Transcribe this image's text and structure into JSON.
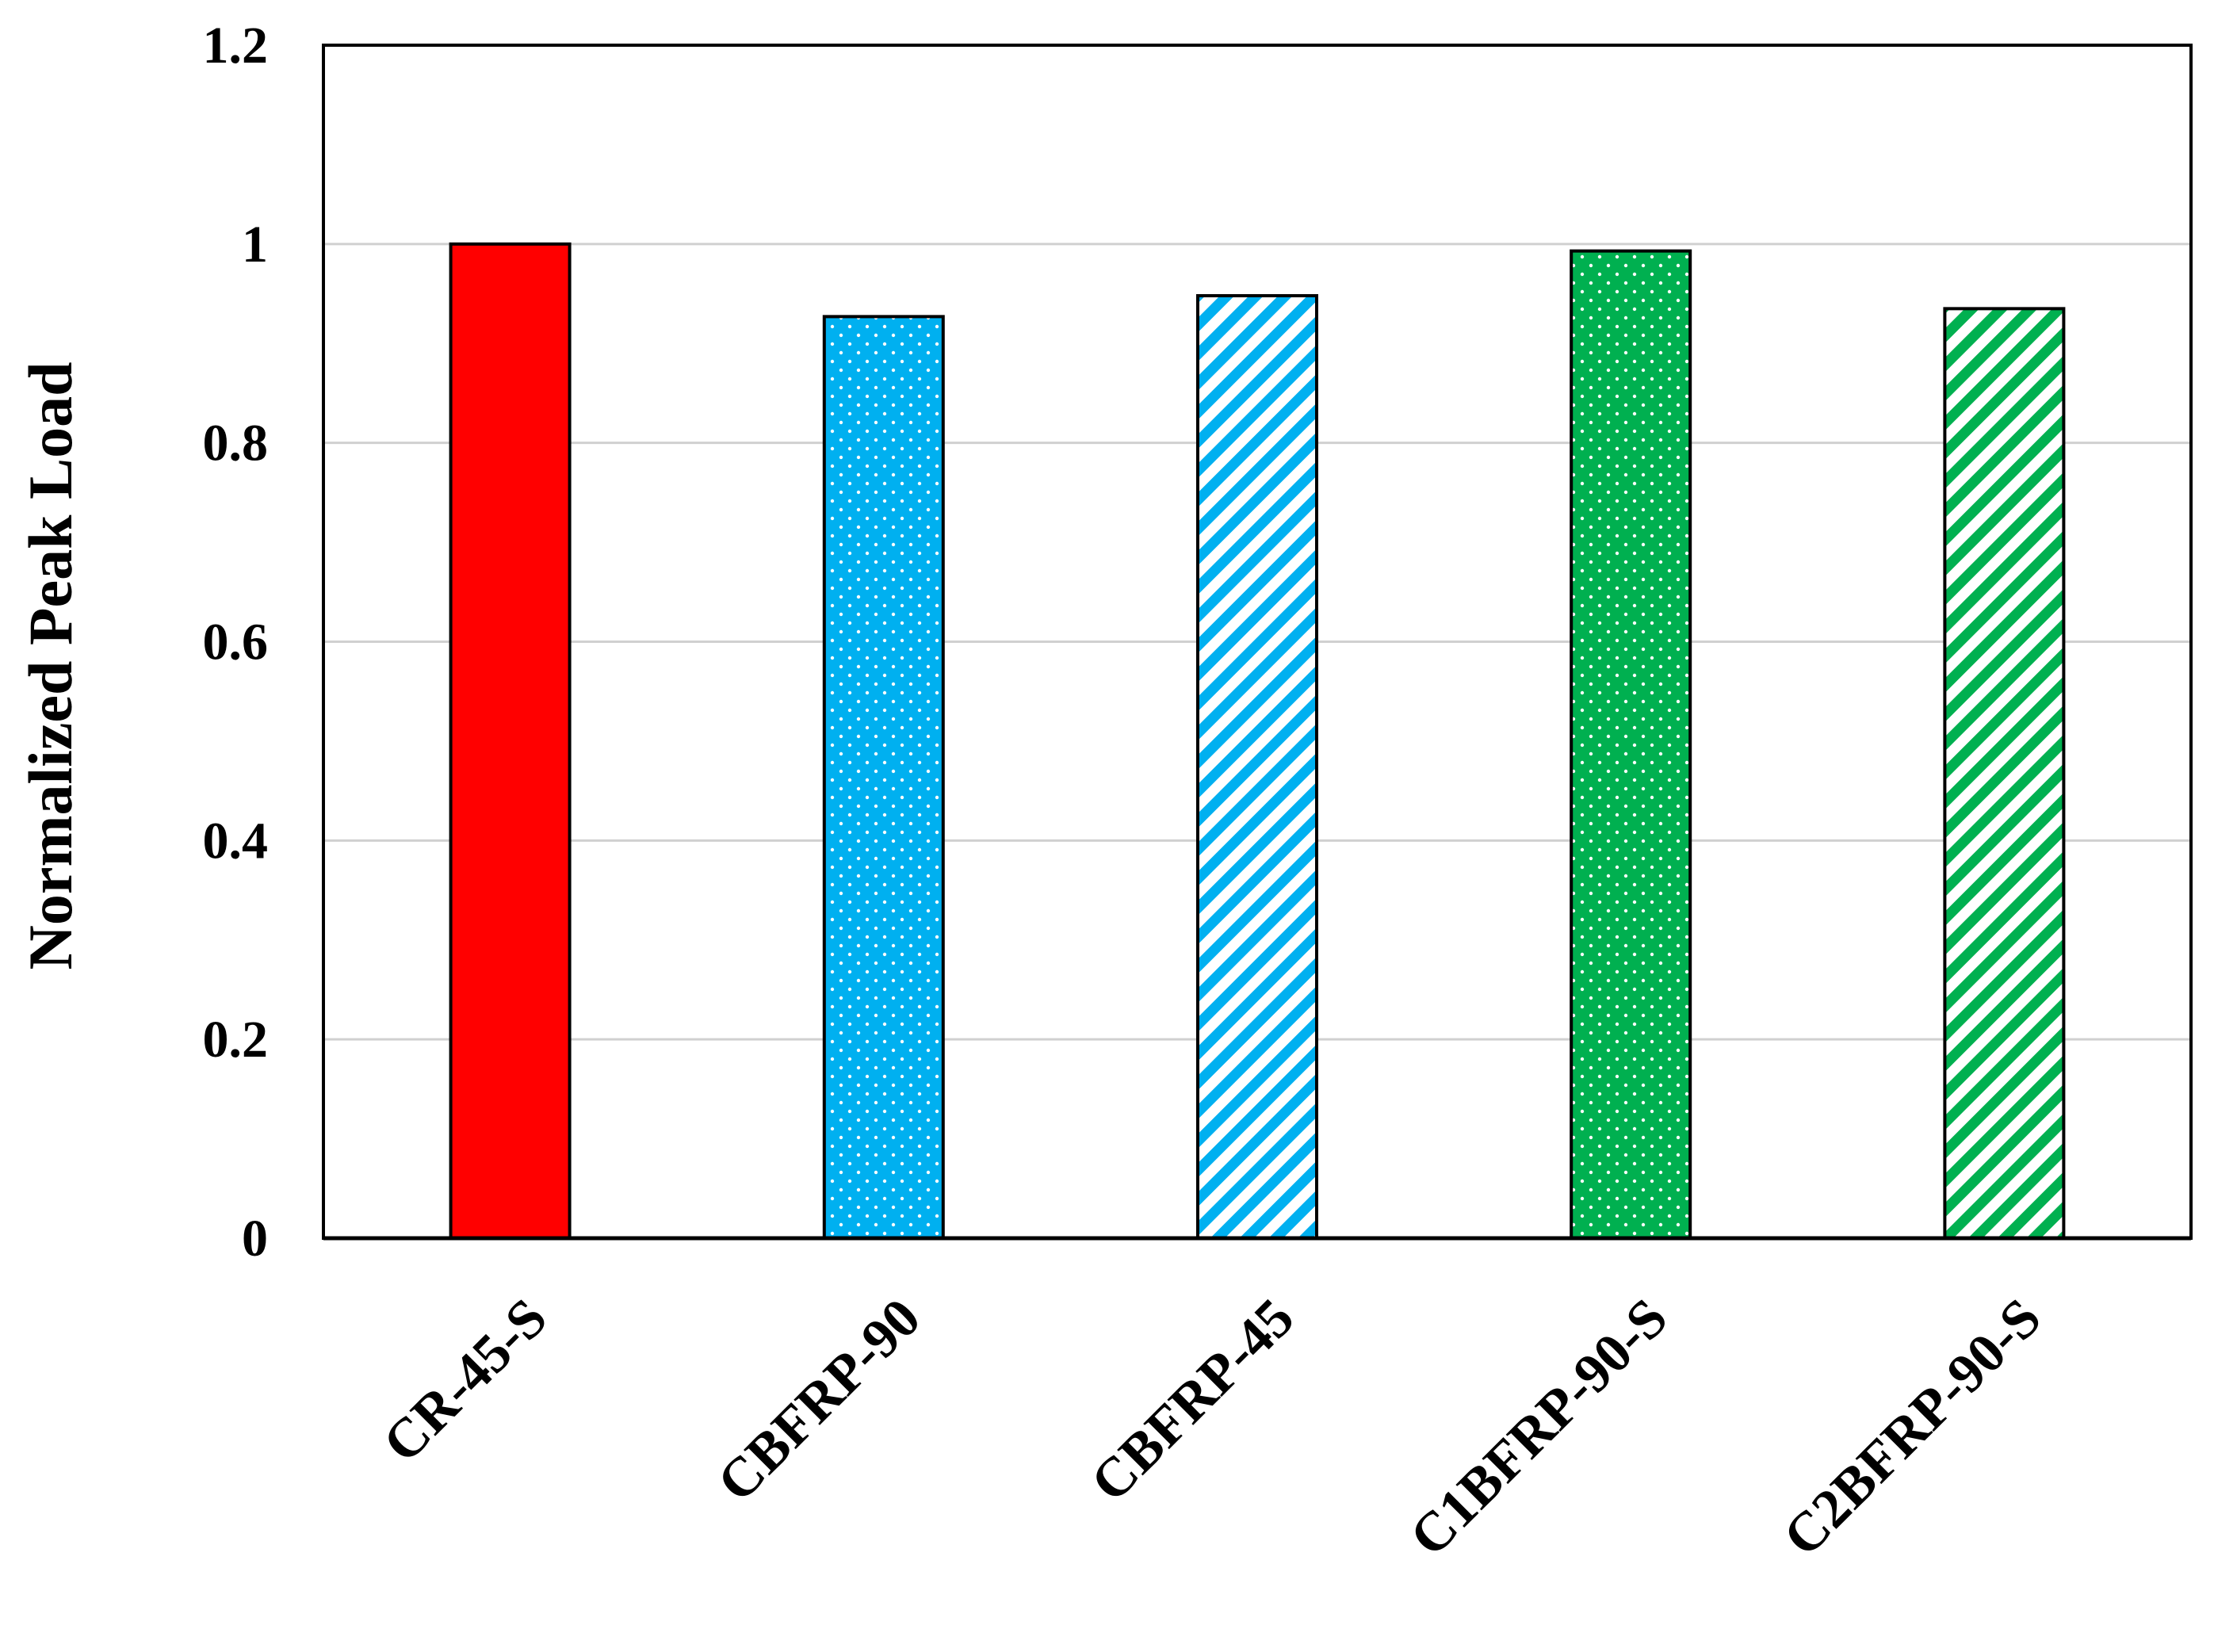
{
  "chart_data": {
    "type": "bar",
    "y_label": "Normalized Peak Load",
    "categories": [
      "CR-45-S",
      "CBFRP-90",
      "CBFRP-45",
      "C1BFRP-90-S",
      "C2BFRP-90-S"
    ],
    "values": [
      1.0,
      0.927,
      0.948,
      0.993,
      0.935
    ],
    "colors": [
      "#ff0000",
      "#00b0f0",
      "#00b0f0",
      "#00b050",
      "#00b050"
    ],
    "patterns": [
      "solid",
      "dots",
      "stripes",
      "dots",
      "stripes"
    ],
    "ylim": [
      0,
      1.2
    ],
    "yticks": [
      0,
      0.2,
      0.4,
      0.6,
      0.8,
      1,
      1.2
    ],
    "grid": true
  }
}
